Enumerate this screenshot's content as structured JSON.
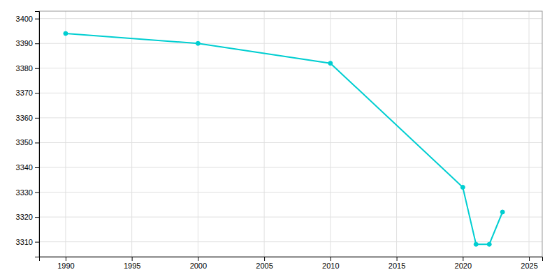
{
  "chart_data": {
    "type": "line",
    "x": [
      1990,
      2000,
      2010,
      2020,
      2021,
      2022,
      2023
    ],
    "values": [
      3394,
      3390,
      3382,
      3332,
      3309,
      3309,
      3322
    ],
    "color": "#00CED1",
    "marker": "circle",
    "xlim": [
      1988,
      2026
    ],
    "ylim": [
      3304,
      3403
    ],
    "xticks": [
      1990,
      1995,
      2000,
      2005,
      2010,
      2015,
      2020,
      2025
    ],
    "yticks": [
      3310,
      3320,
      3330,
      3340,
      3350,
      3360,
      3370,
      3380,
      3390,
      3400
    ],
    "grid": true
  }
}
